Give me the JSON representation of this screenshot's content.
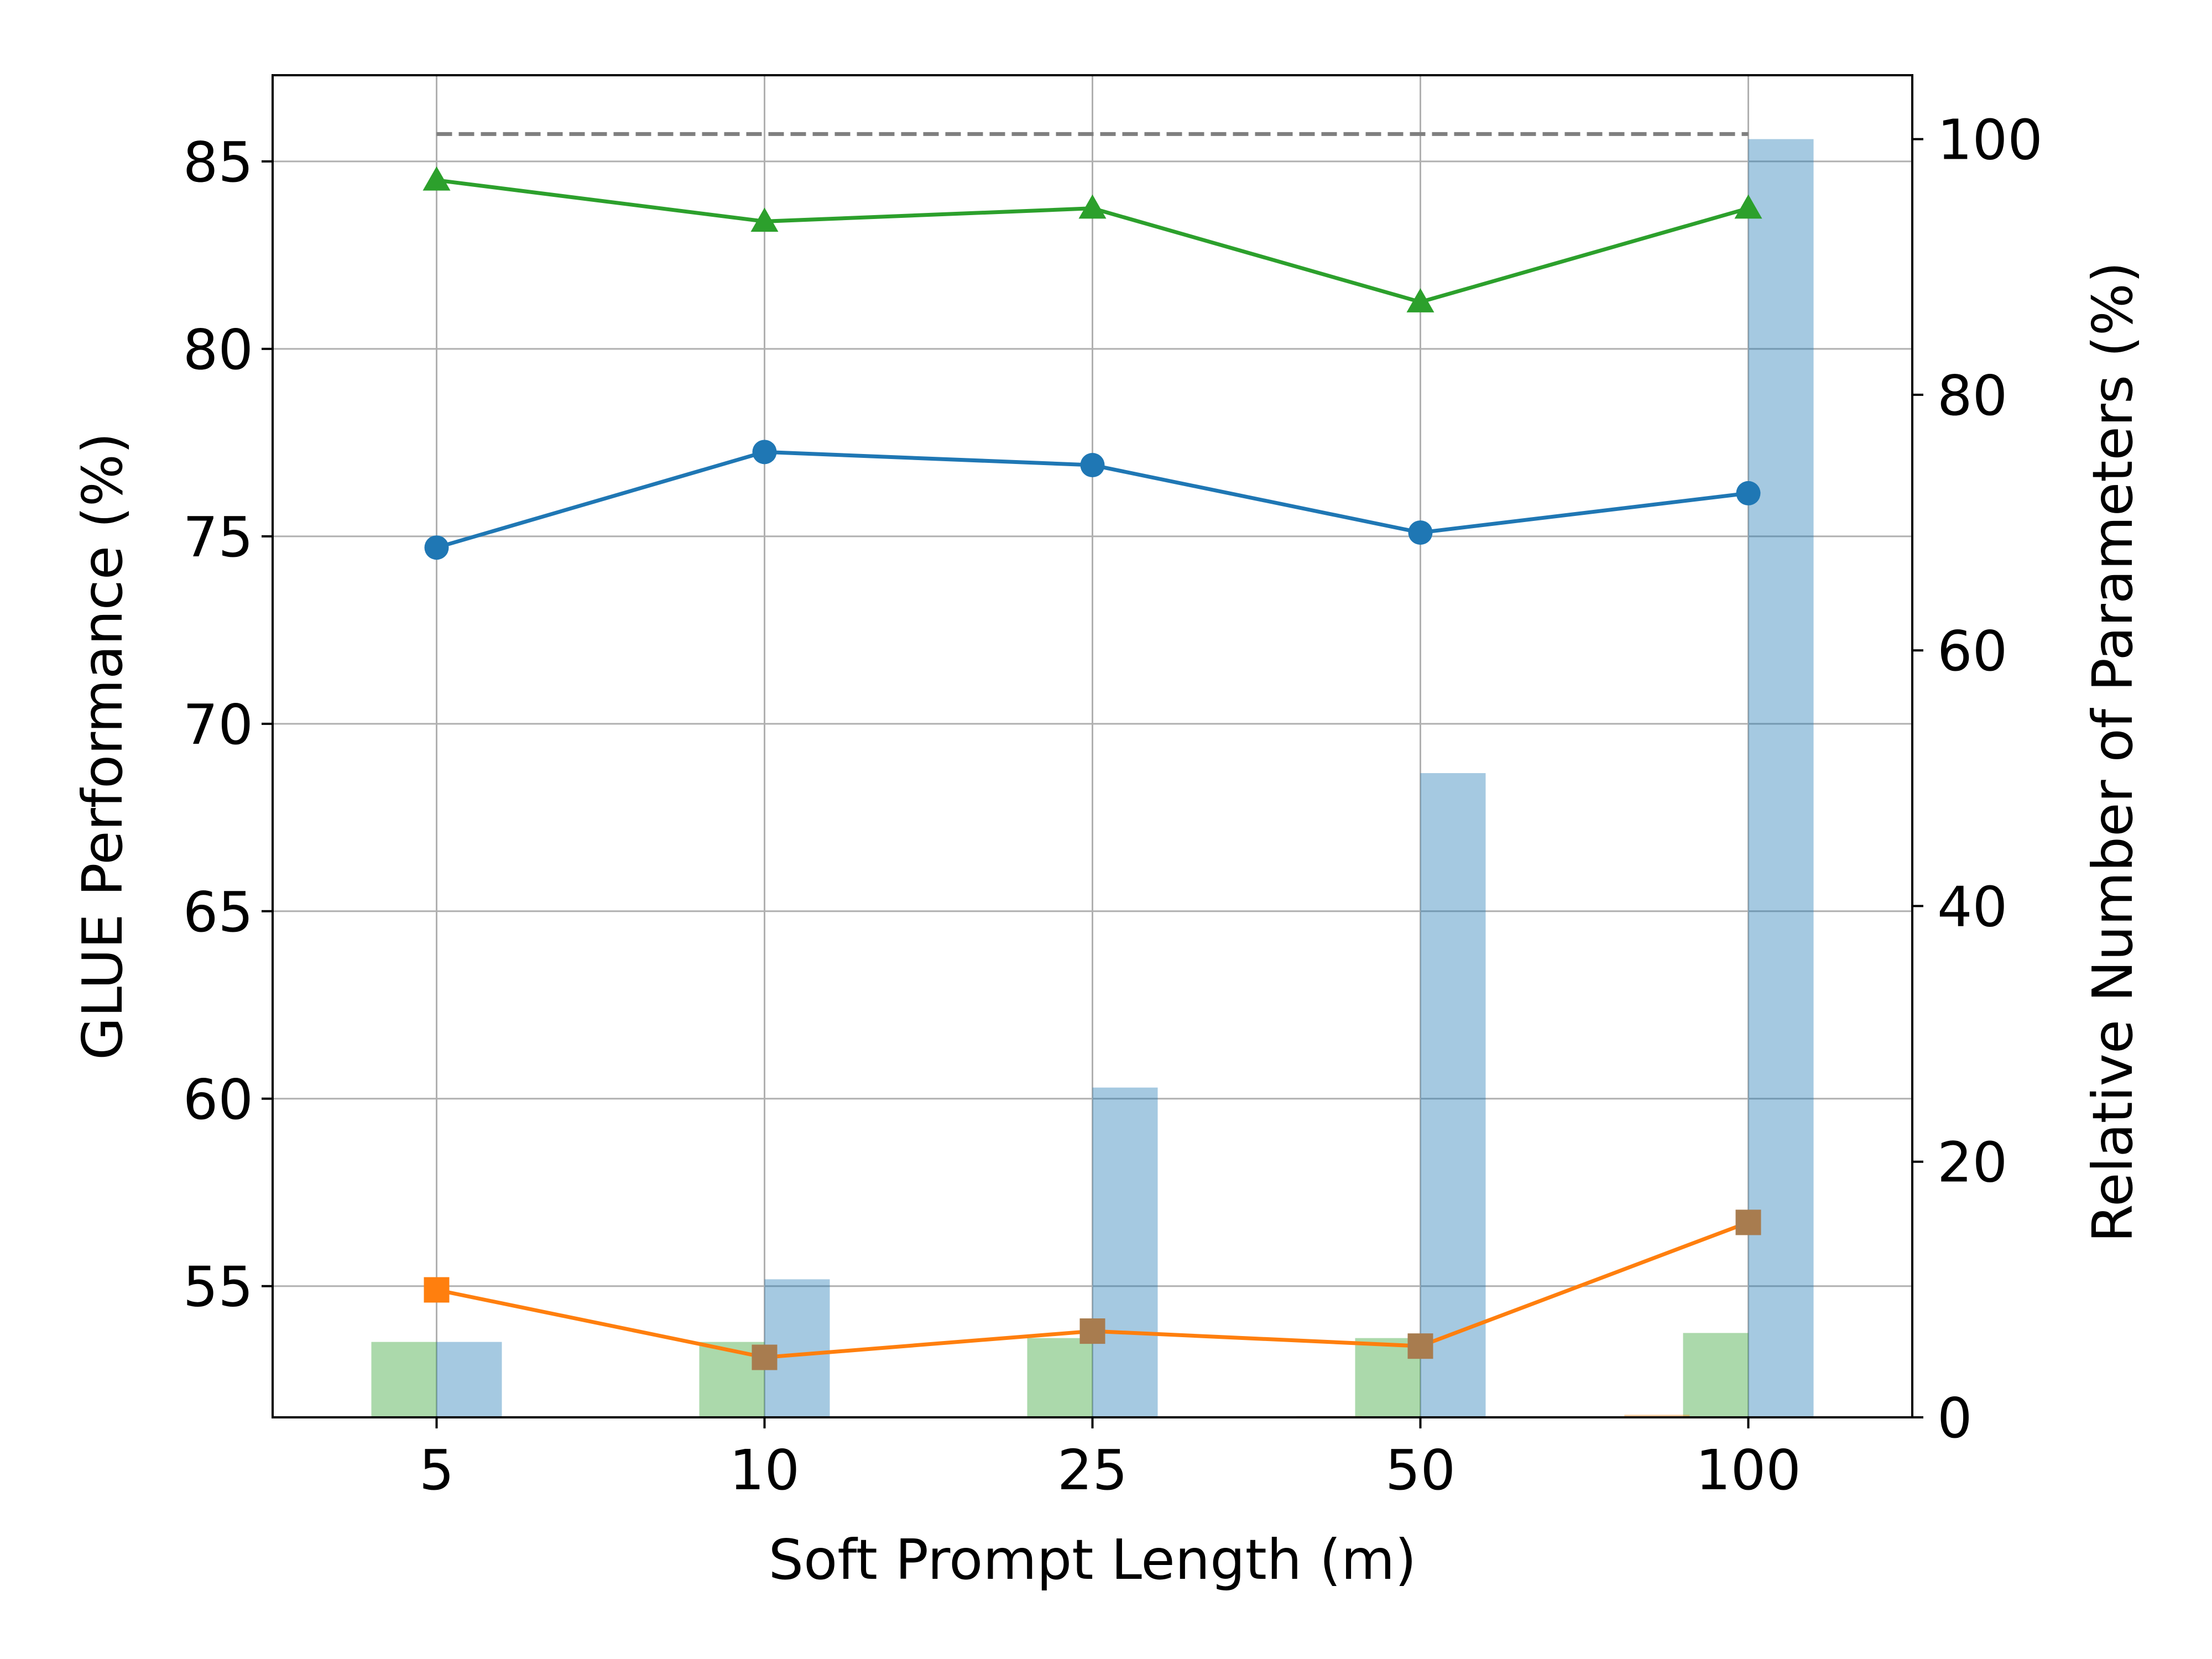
{
  "chart_data": {
    "type": "bar+line",
    "title": "",
    "xlabel": "Soft Prompt Length (m)",
    "ylabel_left": "GLUE Performance (%)",
    "ylabel_right": "Relative Number of Parameters (%)",
    "categories": [
      "5",
      "10",
      "25",
      "50",
      "100"
    ],
    "ylim_left": [
      51.5,
      87.3
    ],
    "ylim_right": [
      0,
      105
    ],
    "yticks_left": [
      "55",
      "60",
      "65",
      "70",
      "75",
      "80",
      "85"
    ],
    "yticks_right": [
      "0",
      "20",
      "40",
      "60",
      "80",
      "100"
    ],
    "grid": true,
    "line_series": [
      {
        "color": "#2ca02c",
        "marker": "triangle",
        "values": [
          84.5,
          83.4,
          83.75,
          81.25,
          83.75
        ]
      },
      {
        "color": "#1f77b4",
        "marker": "circle",
        "values": [
          74.7,
          77.25,
          76.9,
          75.1,
          76.15
        ]
      },
      {
        "color": "#ff7f0e",
        "marker": "square",
        "values": [
          54.9,
          53.1,
          53.8,
          53.4,
          56.7
        ]
      }
    ],
    "reference_line": {
      "color": "#7f7f7f",
      "style": "dashed",
      "value": 100.4,
      "axis": "right"
    },
    "bar_series": [
      {
        "color": "#2ca02c",
        "opacity": 0.4,
        "values": [
          5.9,
          5.9,
          6.2,
          6.2,
          6.6
        ]
      },
      {
        "color": "#1f77b4",
        "opacity": 0.4,
        "values": [
          5.9,
          10.8,
          25.8,
          50.4,
          100.0
        ]
      },
      {
        "color": "#ff7f0e",
        "opacity": 0.4,
        "values": [
          0.0,
          0.0,
          0.0,
          0.1,
          0.2
        ]
      }
    ]
  }
}
